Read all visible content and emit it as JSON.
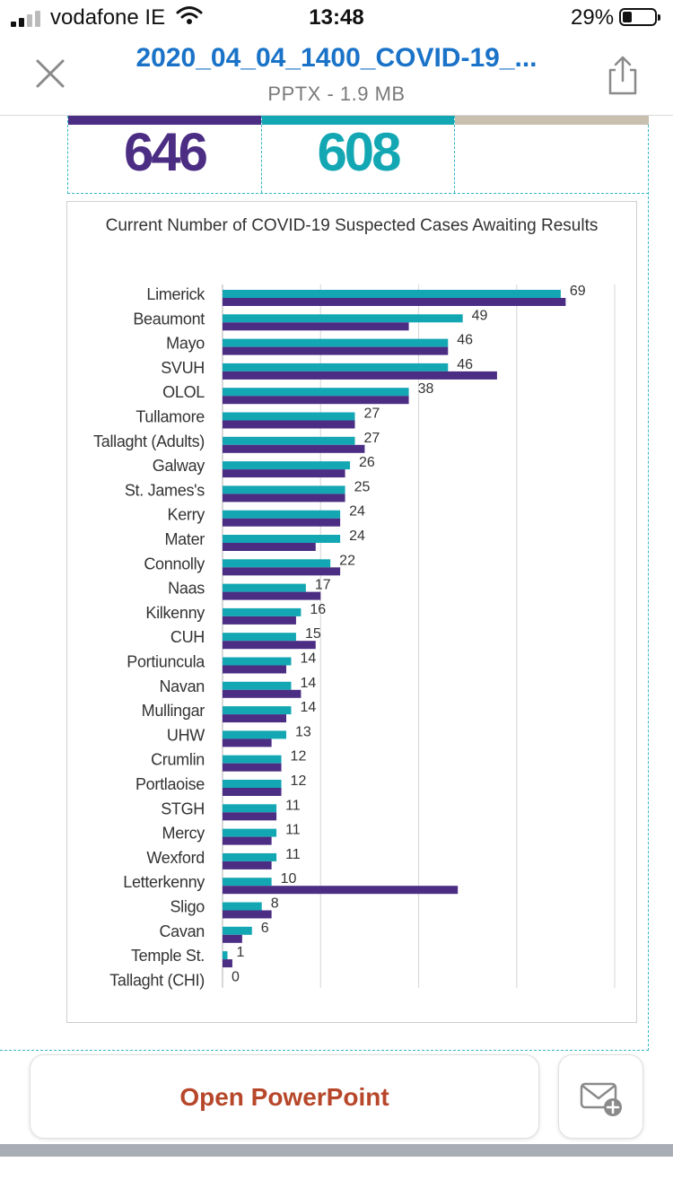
{
  "status_bar": {
    "carrier": "vodafone IE",
    "time": "13:48",
    "battery_percent": "29%",
    "battery_level": 0.29
  },
  "header": {
    "title": "2020_04_04_1400_COVID-19_...",
    "subtitle": "PPTX - 1.9 MB",
    "close_icon": "close-icon",
    "share_icon": "share-icon"
  },
  "summary_table": {
    "cells": [
      {
        "value": "646",
        "color": "#4b2d83"
      },
      {
        "value": "608",
        "color": "#13a7b3"
      },
      {
        "value": "",
        "color": "#c9bfae"
      }
    ]
  },
  "chart_data": {
    "type": "bar",
    "orientation": "horizontal",
    "title": "Current Number of COVID-19 Suspected Cases Awaiting Results",
    "categories": [
      "Limerick",
      "Beaumont",
      "Mayo",
      "SVUH",
      "OLOL",
      "Tullamore",
      "Tallaght (Adults)",
      "Galway",
      "St. James's",
      "Kerry",
      "Mater",
      "Connolly",
      "Naas",
      "Kilkenny",
      "CUH",
      "Portiuncula",
      "Navan",
      "Mullingar",
      "UHW",
      "Crumlin",
      "Portlaoise",
      "STGH",
      "Mercy",
      "Wexford",
      "Letterkenny",
      "Sligo",
      "Cavan",
      "Temple St.",
      "Tallaght (CHI)"
    ],
    "series": [
      {
        "color": "#13a7b3",
        "values": [
          69,
          49,
          46,
          46,
          38,
          27,
          27,
          26,
          25,
          24,
          24,
          22,
          17,
          16,
          15,
          14,
          14,
          14,
          13,
          12,
          12,
          11,
          11,
          11,
          10,
          8,
          6,
          1,
          0
        ]
      },
      {
        "color": "#4b2d83",
        "values": [
          70,
          38,
          46,
          56,
          38,
          27,
          29,
          25,
          25,
          24,
          19,
          24,
          20,
          15,
          19,
          13,
          16,
          13,
          10,
          12,
          12,
          11,
          10,
          10,
          48,
          10,
          4,
          2,
          0
        ]
      }
    ],
    "data_labels": [
      "69",
      "49",
      "46",
      "46",
      "38",
      "27",
      "27",
      "26",
      "25",
      "24",
      "24",
      "22",
      "17",
      "16",
      "15",
      "14",
      "14",
      "14",
      "13",
      "12",
      "12",
      "11",
      "11",
      "11",
      "10",
      "8",
      "6",
      "1",
      "0"
    ],
    "xlim": [
      0,
      80
    ],
    "gridlines": [
      0,
      20,
      40,
      60,
      80
    ],
    "grid": true,
    "legend": "none"
  },
  "actions": {
    "open_label": "Open PowerPoint",
    "mail_icon": "mail-add-icon"
  }
}
